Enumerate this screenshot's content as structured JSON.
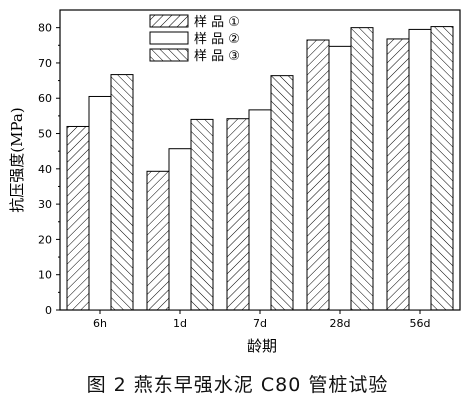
{
  "caption": "图 2 燕东早强水泥 C80 管桩试验",
  "chart_data": {
    "type": "bar",
    "title": "",
    "xlabel": "龄期",
    "ylabel": "抗压强度(MPa)",
    "categories": [
      "6h",
      "1d",
      "7d",
      "28d",
      "56d"
    ],
    "ylim": [
      0,
      85
    ],
    "yticks": [
      0,
      10,
      20,
      30,
      40,
      50,
      60,
      70,
      80
    ],
    "grid": false,
    "legend_position": "top-left",
    "series": [
      {
        "name": "样 品 ①",
        "pattern": "diagonal-up",
        "values": [
          52,
          39.3,
          54.2,
          76.5,
          76.8
        ]
      },
      {
        "name": "样 品 ②",
        "pattern": "blank",
        "values": [
          60.5,
          45.7,
          56.7,
          74.7,
          79.5
        ]
      },
      {
        "name": "样 品 ③",
        "pattern": "diagonal-down",
        "values": [
          66.7,
          54,
          66.4,
          80,
          80.3
        ]
      }
    ]
  }
}
